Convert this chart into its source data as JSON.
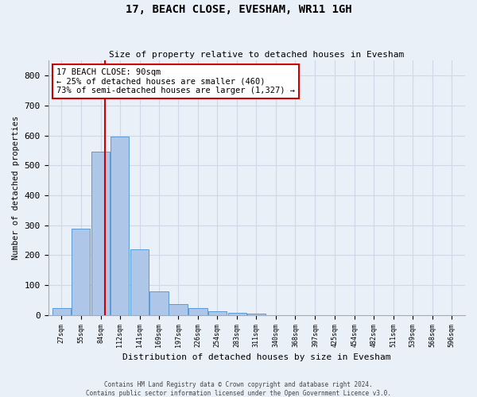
{
  "title": "17, BEACH CLOSE, EVESHAM, WR11 1GH",
  "subtitle": "Size of property relative to detached houses in Evesham",
  "xlabel": "Distribution of detached houses by size in Evesham",
  "ylabel": "Number of detached properties",
  "footer_line1": "Contains HM Land Registry data © Crown copyright and database right 2024.",
  "footer_line2": "Contains public sector information licensed under the Open Government Licence v3.0.",
  "bin_labels": [
    "27sqm",
    "55sqm",
    "84sqm",
    "112sqm",
    "141sqm",
    "169sqm",
    "197sqm",
    "226sqm",
    "254sqm",
    "283sqm",
    "311sqm",
    "340sqm",
    "368sqm",
    "397sqm",
    "425sqm",
    "454sqm",
    "482sqm",
    "511sqm",
    "539sqm",
    "568sqm",
    "596sqm"
  ],
  "bar_values": [
    25,
    290,
    545,
    595,
    220,
    80,
    38,
    25,
    12,
    8,
    6,
    0,
    0,
    0,
    0,
    0,
    0,
    0,
    0,
    0,
    0
  ],
  "bar_color": "#aec6e8",
  "bar_edge_color": "#5b9bd5",
  "grid_color": "#d0d8e8",
  "background_color": "#eaf0f8",
  "red_line_x": 90,
  "red_line_color": "#cc0000",
  "annotation_text": "17 BEACH CLOSE: 90sqm\n← 25% of detached houses are smaller (460)\n73% of semi-detached houses are larger (1,327) →",
  "annotation_box_color": "white",
  "annotation_box_edge": "#cc0000",
  "ylim": [
    0,
    850
  ],
  "yticks": [
    0,
    100,
    200,
    300,
    400,
    500,
    600,
    700,
    800
  ]
}
